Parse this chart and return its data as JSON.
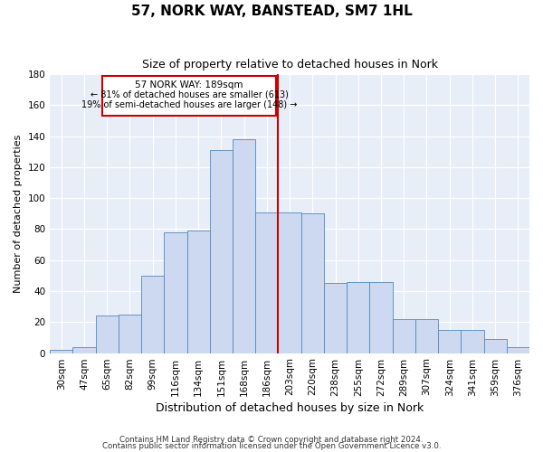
{
  "title": "57, NORK WAY, BANSTEAD, SM7 1HL",
  "subtitle": "Size of property relative to detached houses in Nork",
  "xlabel": "Distribution of detached houses by size in Nork",
  "ylabel": "Number of detached properties",
  "footnote1": "Contains HM Land Registry data © Crown copyright and database right 2024.",
  "footnote2": "Contains public sector information licensed under the Open Government Licence v3.0.",
  "bar_labels": [
    "30sqm",
    "47sqm",
    "65sqm",
    "82sqm",
    "99sqm",
    "116sqm",
    "134sqm",
    "151sqm",
    "168sqm",
    "186sqm",
    "203sqm",
    "220sqm",
    "238sqm",
    "255sqm",
    "272sqm",
    "289sqm",
    "307sqm",
    "324sqm",
    "341sqm",
    "359sqm",
    "376sqm"
  ],
  "bar_heights": [
    2,
    4,
    24,
    25,
    50,
    78,
    79,
    131,
    138,
    91,
    91,
    90,
    45,
    46,
    46,
    22,
    22,
    15,
    15,
    9,
    4
  ],
  "ylim": [
    0,
    180
  ],
  "yticks": [
    0,
    20,
    40,
    60,
    80,
    100,
    120,
    140,
    160,
    180
  ],
  "bar_color": "#ccd9f0",
  "bar_edge_color": "#5588bb",
  "bg_color": "#e8eef8",
  "grid_color": "#d0d8e8",
  "vline_color": "#cc0000",
  "annotation_title": "57 NORK WAY: 189sqm",
  "annotation_line1": "← 81% of detached houses are smaller (613)",
  "annotation_line2": "19% of semi-detached houses are larger (148) →",
  "annotation_box_color": "#cc0000",
  "title_fontsize": 11,
  "subtitle_fontsize": 9,
  "xlabel_fontsize": 9,
  "ylabel_fontsize": 8,
  "tick_fontsize": 7.5
}
